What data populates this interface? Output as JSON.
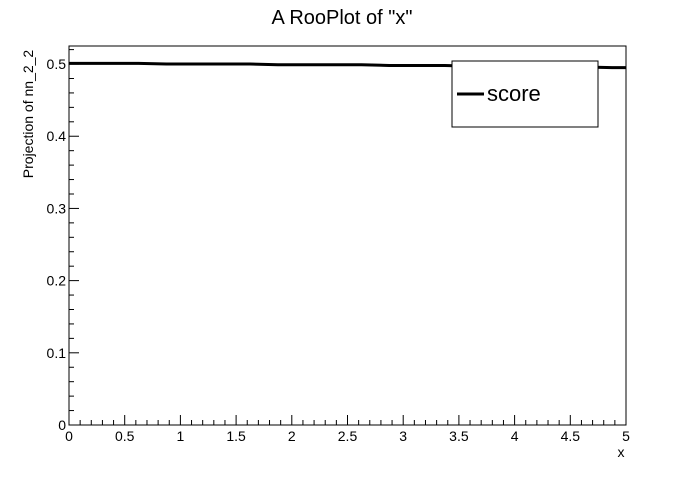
{
  "chart_data": {
    "type": "line",
    "title": "A RooPlot of \"x\"",
    "xlabel": "x",
    "ylabel": "Projection of nn_2_2",
    "xlim": [
      0,
      5
    ],
    "ylim": [
      0,
      0.525
    ],
    "x_ticks": [
      "0",
      "0.5",
      "1",
      "1.5",
      "2",
      "2.5",
      "3",
      "3.5",
      "4",
      "4.5",
      "5"
    ],
    "y_ticks": [
      "0",
      "0.1",
      "0.2",
      "0.3",
      "0.4",
      "0.5"
    ],
    "legend_position": "top-right",
    "grid": false,
    "series": [
      {
        "name": "score",
        "color": "#000000",
        "x": [
          0.0,
          0.125,
          0.375,
          0.625,
          0.875,
          1.125,
          1.375,
          1.625,
          1.875,
          2.125,
          2.375,
          2.625,
          2.875,
          3.125,
          3.375,
          3.625,
          3.875,
          4.125,
          4.375,
          4.625,
          4.875,
          5.0
        ],
        "values": [
          0.501,
          0.501,
          0.501,
          0.501,
          0.5,
          0.5,
          0.5,
          0.5,
          0.499,
          0.499,
          0.499,
          0.499,
          0.498,
          0.498,
          0.498,
          0.497,
          0.497,
          0.497,
          0.496,
          0.496,
          0.495,
          0.495
        ]
      }
    ]
  }
}
